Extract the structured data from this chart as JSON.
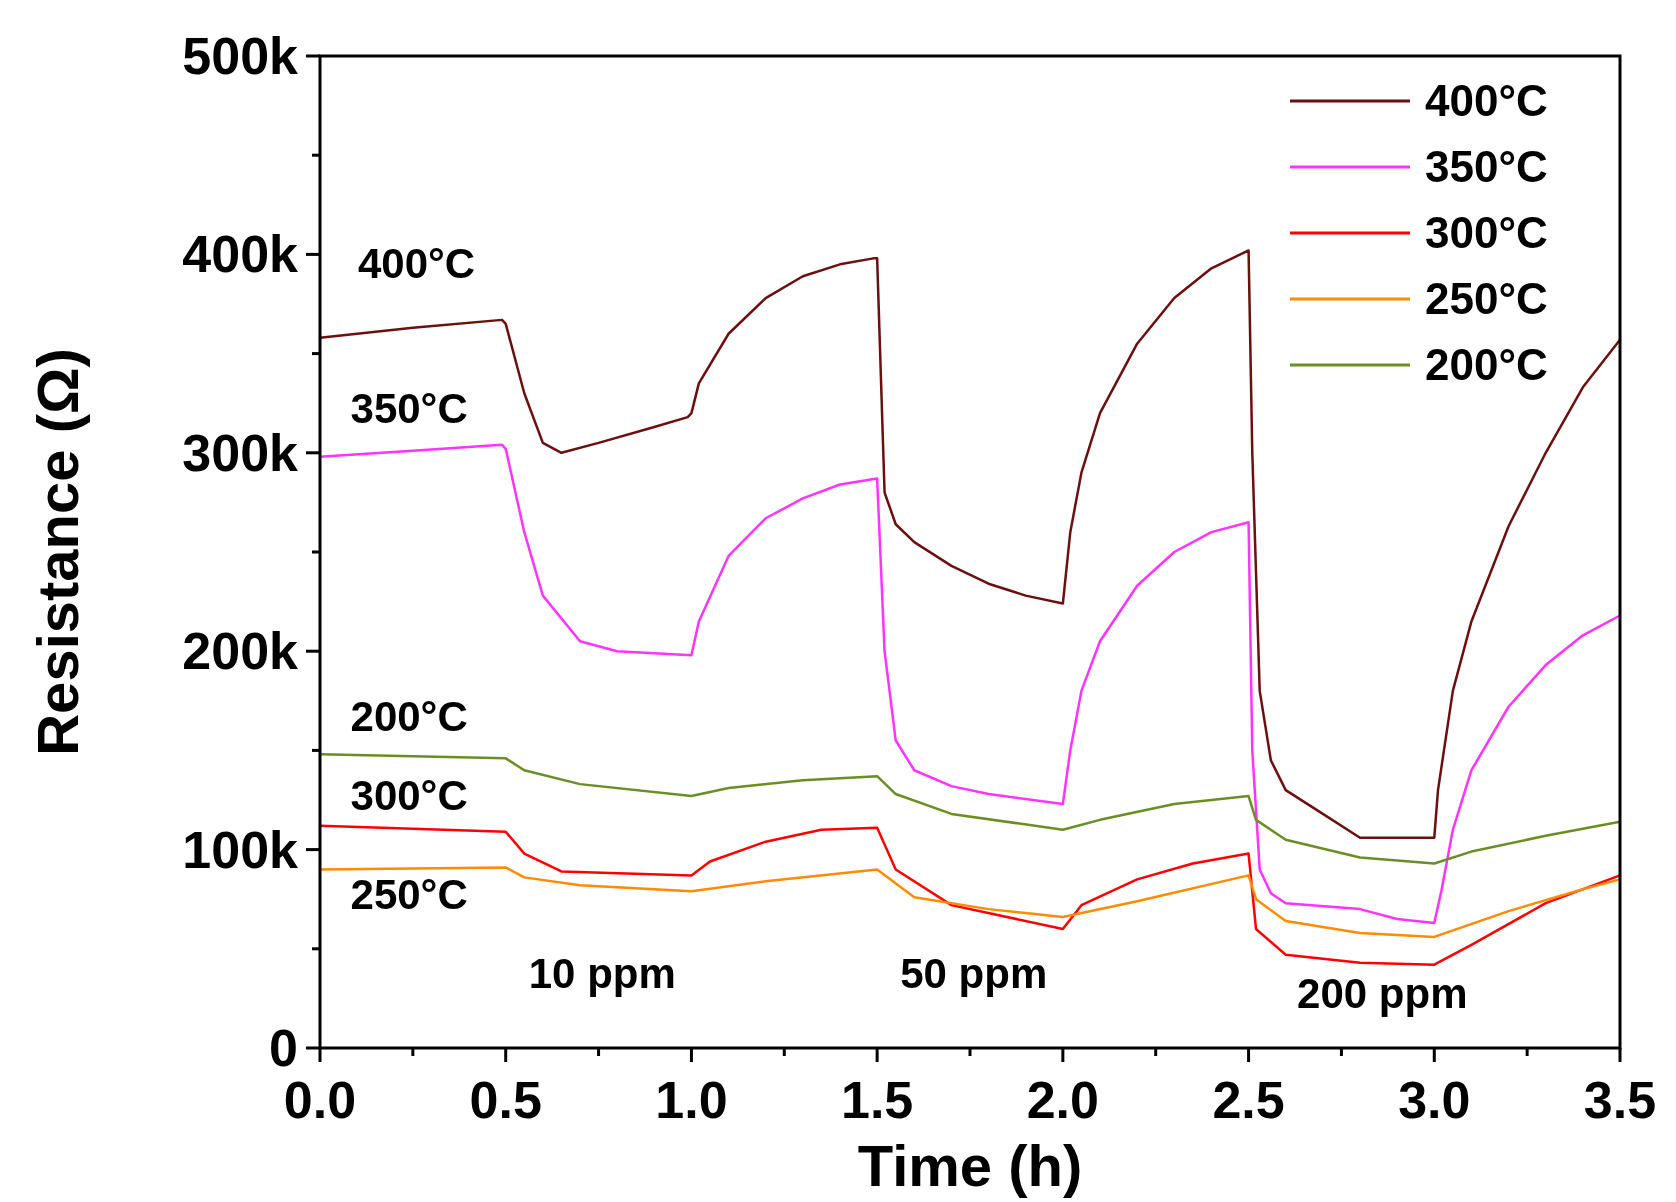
{
  "chart_data": {
    "type": "line",
    "xlabel": "Time (h)",
    "ylabel": "Resistance (Ω)",
    "xlim": [
      0,
      3.5
    ],
    "ylim": [
      0,
      500
    ],
    "xticks": [
      {
        "value": 0,
        "label": "0.0"
      },
      {
        "value": 0.25,
        "label": null
      },
      {
        "value": 0.5,
        "label": "0.5"
      },
      {
        "value": 0.75,
        "label": null
      },
      {
        "value": 1,
        "label": "1.0"
      },
      {
        "value": 1.25,
        "label": null
      },
      {
        "value": 1.5,
        "label": "1.5"
      },
      {
        "value": 1.75,
        "label": null
      },
      {
        "value": 2,
        "label": "2.0"
      },
      {
        "value": 2.25,
        "label": null
      },
      {
        "value": 2.5,
        "label": "2.5"
      },
      {
        "value": 2.75,
        "label": null
      },
      {
        "value": 3,
        "label": "3.0"
      },
      {
        "value": 3.25,
        "label": null
      },
      {
        "value": 3.5,
        "label": "3.5"
      }
    ],
    "yticks": [
      {
        "value": 0,
        "label": "0"
      },
      {
        "value": 50,
        "label": null
      },
      {
        "value": 100,
        "label": "100k"
      },
      {
        "value": 150,
        "label": null
      },
      {
        "value": 200,
        "label": "200k"
      },
      {
        "value": 250,
        "label": null
      },
      {
        "value": 300,
        "label": "300k"
      },
      {
        "value": 350,
        "label": null
      },
      {
        "value": 400,
        "label": "400k"
      },
      {
        "value": 450,
        "label": null
      },
      {
        "value": 500,
        "label": "500k"
      }
    ],
    "grid": false,
    "legend": "top right",
    "marker": "none",
    "line_style": "solid",
    "series": [
      {
        "name": "400°C",
        "color": "#6b0f0f",
        "x": [
          0,
          0.25,
          0.49,
          0.5,
          0.55,
          0.6,
          0.65,
          0.75,
          0.9,
          0.99,
          1.0,
          1.02,
          1.1,
          1.2,
          1.3,
          1.4,
          1.49,
          1.5,
          1.52,
          1.55,
          1.6,
          1.7,
          1.8,
          1.9,
          2.0,
          2.02,
          2.05,
          2.1,
          2.2,
          2.3,
          2.4,
          2.5,
          2.51,
          2.53,
          2.56,
          2.6,
          2.7,
          2.8,
          2.9,
          3.0,
          3.01,
          3.05,
          3.1,
          3.2,
          3.3,
          3.4,
          3.5
        ],
        "values": [
          358,
          363,
          367,
          365,
          330,
          305,
          300,
          305,
          313,
          318,
          320,
          335,
          360,
          378,
          389,
          395,
          398,
          398,
          280,
          264,
          255,
          243,
          234,
          228,
          224,
          260,
          290,
          320,
          355,
          378,
          393,
          402,
          300,
          180,
          145,
          130,
          118,
          106,
          106,
          106,
          130,
          180,
          215,
          263,
          300,
          333,
          357
        ]
      },
      {
        "name": "350°C",
        "color": "#ff33ff",
        "x": [
          0,
          0.25,
          0.49,
          0.5,
          0.55,
          0.6,
          0.7,
          0.8,
          1.0,
          1.02,
          1.1,
          1.2,
          1.3,
          1.4,
          1.5,
          1.52,
          1.55,
          1.6,
          1.7,
          1.8,
          2.0,
          2.02,
          2.05,
          2.1,
          2.2,
          2.3,
          2.4,
          2.5,
          2.51,
          2.53,
          2.56,
          2.6,
          2.8,
          2.9,
          3.0,
          3.02,
          3.05,
          3.1,
          3.2,
          3.3,
          3.4,
          3.5
        ],
        "values": [
          298,
          301,
          304,
          302,
          260,
          228,
          205,
          200,
          198,
          215,
          248,
          267,
          277,
          284,
          287,
          200,
          155,
          140,
          132,
          128,
          123,
          150,
          180,
          205,
          233,
          250,
          260,
          265,
          150,
          90,
          78,
          73,
          70,
          65,
          63,
          80,
          110,
          140,
          172,
          193,
          208,
          218
        ]
      },
      {
        "name": "300°C",
        "color": "#ff0000",
        "x": [
          0,
          0.5,
          0.55,
          0.65,
          1.0,
          1.05,
          1.2,
          1.35,
          1.5,
          1.55,
          1.7,
          2.0,
          2.05,
          2.2,
          2.35,
          2.5,
          2.52,
          2.6,
          2.8,
          3.0,
          3.1,
          3.3,
          3.5
        ],
        "values": [
          112,
          109,
          98,
          89,
          87,
          94,
          104,
          110,
          111,
          90,
          72,
          60,
          72,
          85,
          93,
          98,
          60,
          47,
          43,
          42,
          52,
          73,
          87
        ]
      },
      {
        "name": "250°C",
        "color": "#ff8c00",
        "x": [
          0,
          0.5,
          0.55,
          0.7,
          1.0,
          1.2,
          1.5,
          1.6,
          1.8,
          2.0,
          2.2,
          2.5,
          2.52,
          2.6,
          2.8,
          3.0,
          3.2,
          3.4,
          3.5
        ],
        "values": [
          90,
          91,
          86,
          82,
          79,
          84,
          90,
          76,
          70,
          66,
          74,
          87,
          75,
          64,
          58,
          56,
          69,
          80,
          85
        ]
      },
      {
        "name": "200°C",
        "color": "#6b8e23",
        "x": [
          0,
          0.5,
          0.55,
          0.7,
          1.0,
          1.1,
          1.3,
          1.5,
          1.55,
          1.7,
          2.0,
          2.1,
          2.3,
          2.5,
          2.52,
          2.6,
          2.8,
          3.0,
          3.1,
          3.3,
          3.5
        ],
        "values": [
          148,
          146,
          140,
          133,
          127,
          131,
          135,
          137,
          128,
          118,
          110,
          115,
          123,
          127,
          115,
          105,
          96,
          93,
          99,
          107,
          114
        ]
      }
    ],
    "annotations": [
      "400°C",
      "350°C",
      "200°C",
      "300°C",
      "250°C",
      "10 ppm",
      "50 ppm",
      "200 ppm"
    ]
  }
}
